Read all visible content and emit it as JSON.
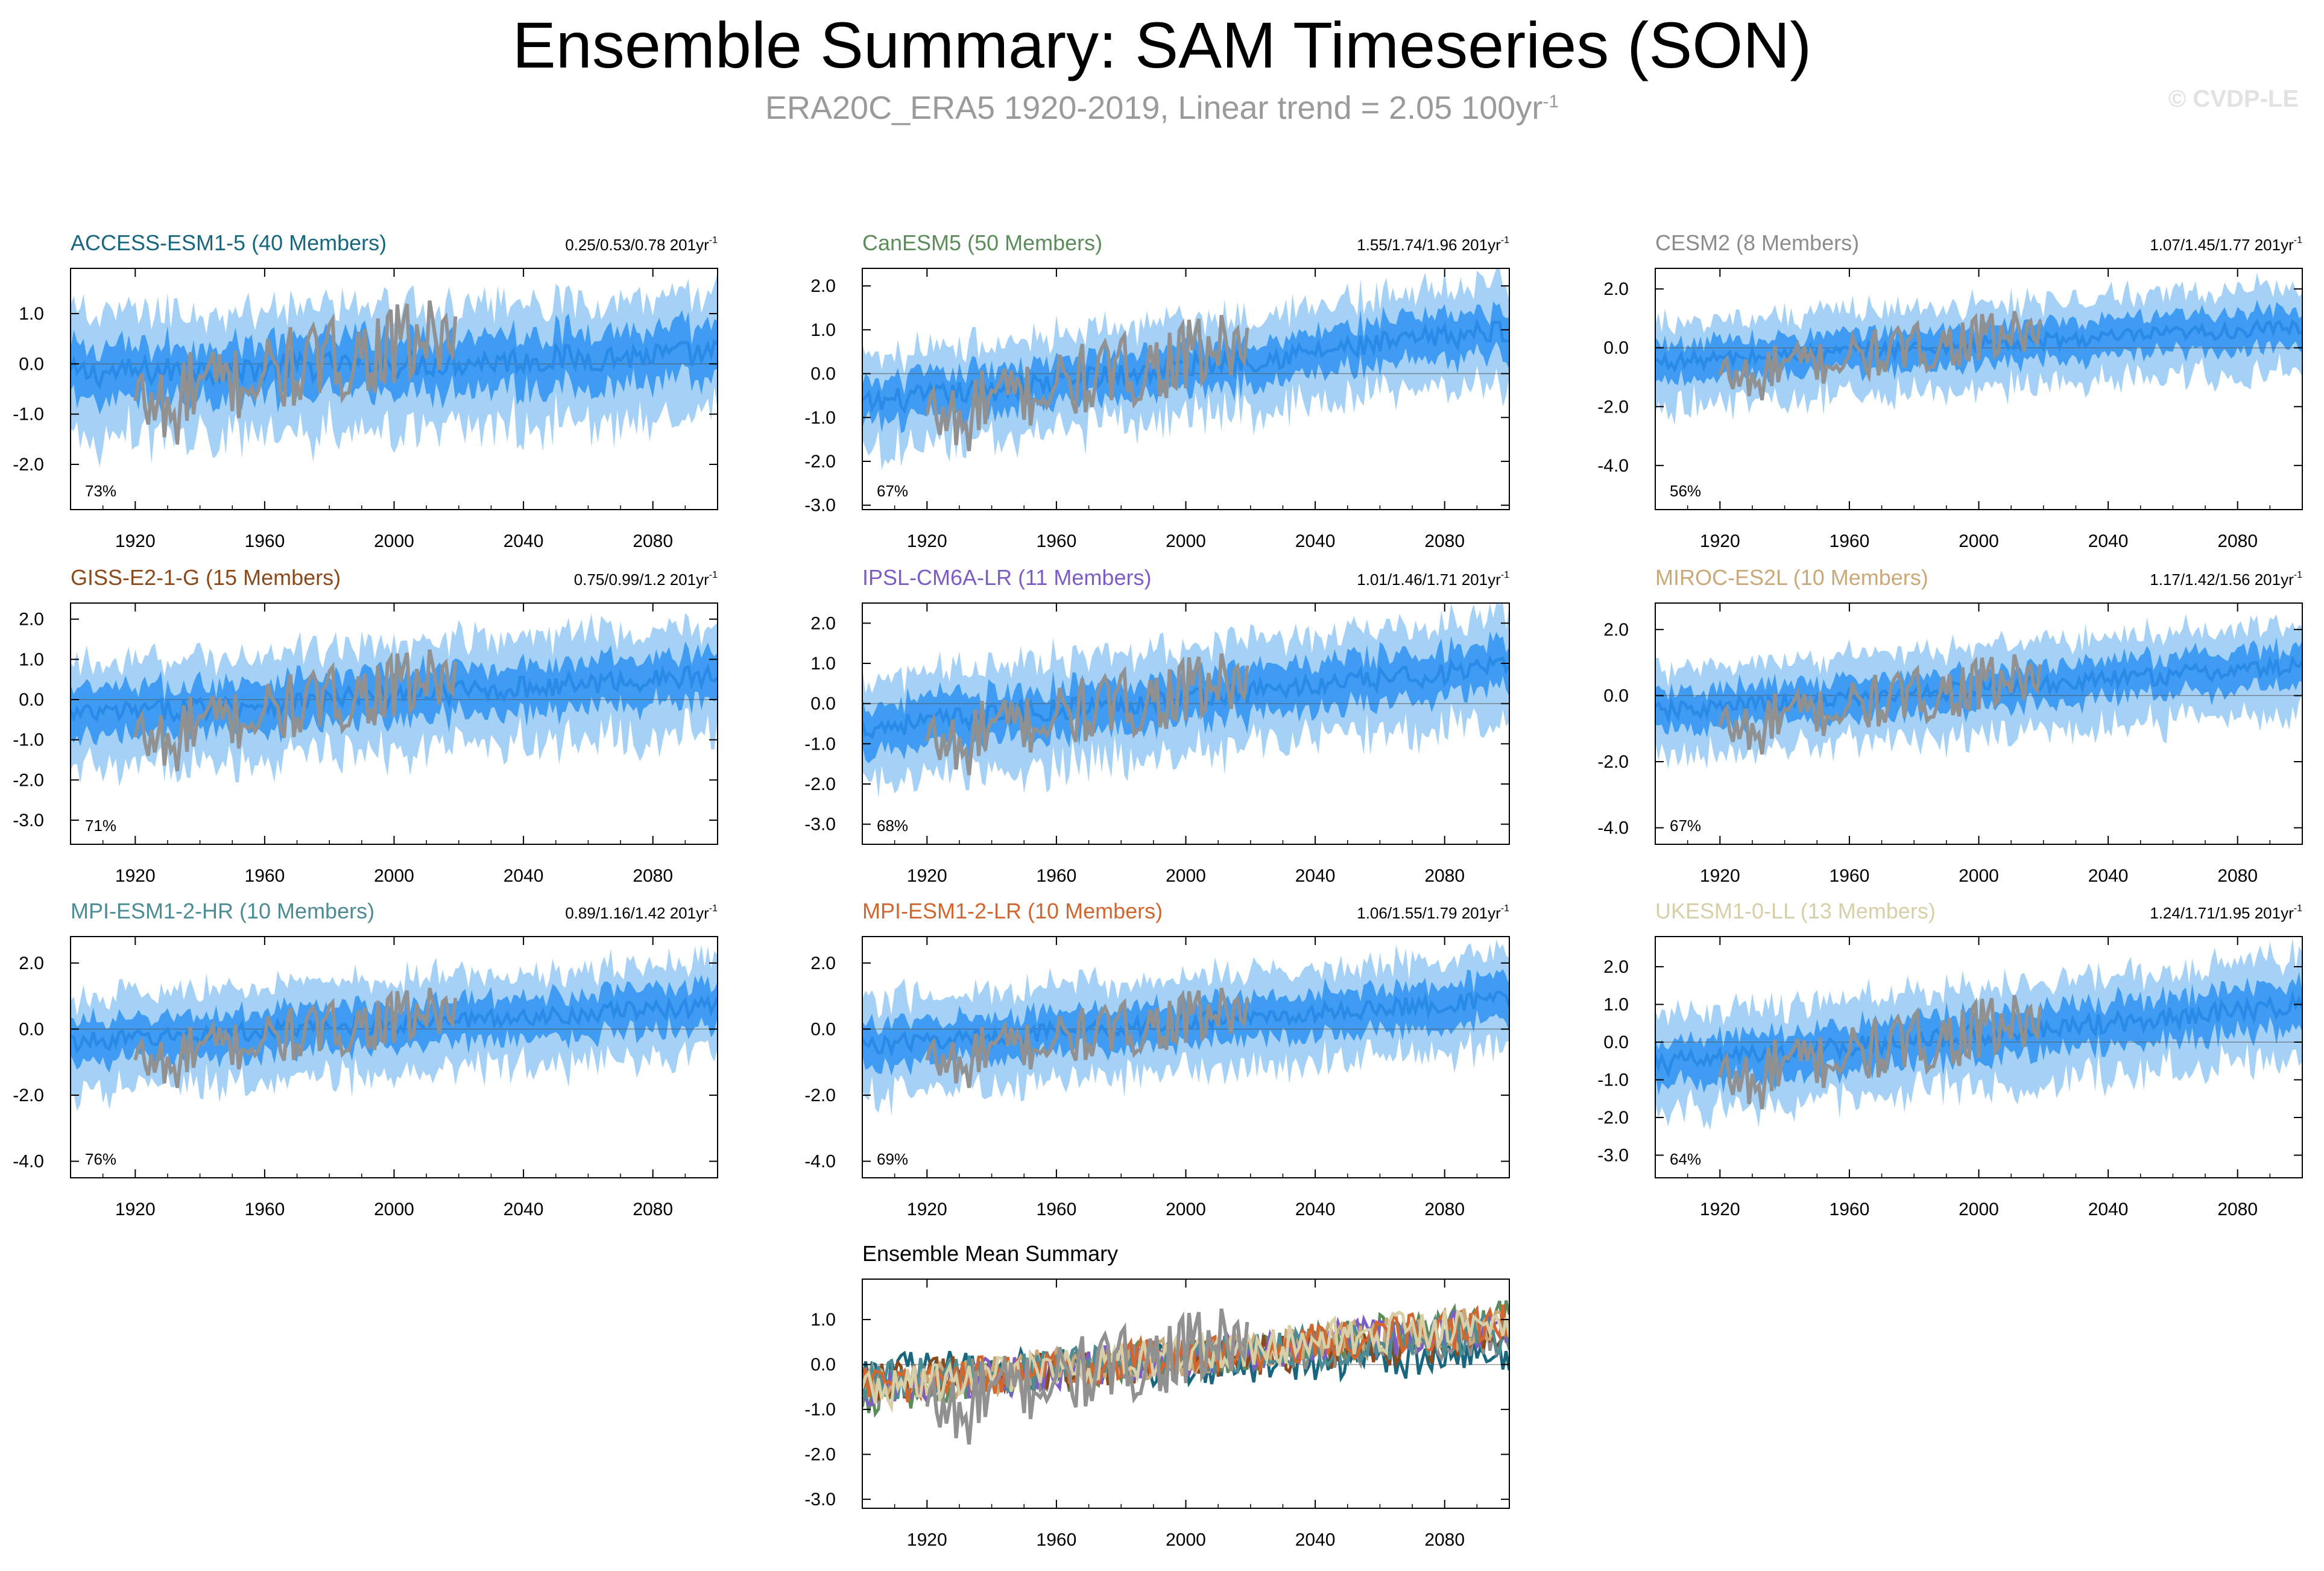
{
  "header": {
    "title": "Ensemble Summary: SAM Timeseries (SON)",
    "subtitle_main": "ERA20C_ERA5 1920-2019, Linear trend = 2.05 100yr",
    "subtitle_sup": "-1",
    "credit": "© CVDP-LE"
  },
  "colors": {
    "spread_outer": "#a6d1f7",
    "spread_inner": "#3f9cf2",
    "ens_mean": "#2a8ae8",
    "obs": "#919191"
  },
  "chart_data": [
    {
      "type": "area",
      "panel": "ACCESS-ESM1-5",
      "title": "ACCESS-ESM1-5 (40 Members)",
      "title_color": "#19677f",
      "trend": "0.25/0.53/0.78 201yr",
      "trend_sup": "-1",
      "pct": "73%",
      "yrange": [
        -2.9,
        1.9
      ],
      "yticks": [
        -2,
        -1,
        0,
        1
      ],
      "ytick_labels": [
        "-2.0",
        "-1.0",
        "0.0",
        "1.0"
      ],
      "xrange": [
        1900,
        2100
      ],
      "xticks": [
        1920,
        1960,
        2000,
        2040,
        2080
      ],
      "xtick_labels": [
        "1920",
        "1960",
        "2000",
        "2040",
        "2080"
      ],
      "trend_start": -0.2,
      "trend_end": 0.2,
      "spread_half": 1.1,
      "obs_start": -0.8,
      "obs_end": 0.6
    },
    {
      "type": "area",
      "panel": "CanESM5",
      "title": "CanESM5 (50 Members)",
      "title_color": "#5b8c5a",
      "trend": "1.55/1.74/1.96 201yr",
      "trend_sup": "-1",
      "pct": "67%",
      "yrange": [
        -3.1,
        2.4
      ],
      "yticks": [
        -3,
        -2,
        -1,
        0,
        1,
        2
      ],
      "ytick_labels": [
        "-3.0",
        "-2.0",
        "-1.0",
        "0.0",
        "1.0",
        "2.0"
      ],
      "xrange": [
        1900,
        2100
      ],
      "xticks": [
        1920,
        1960,
        2000,
        2040,
        2080
      ],
      "xtick_labels": [
        "1920",
        "1960",
        "2000",
        "2040",
        "2080"
      ],
      "trend_start": -0.7,
      "trend_end": 1.0,
      "spread_half": 1.0,
      "obs_start": -1.0,
      "obs_end": 0.7
    },
    {
      "type": "area",
      "panel": "CESM2",
      "title": "CESM2 (8 Members)",
      "title_color": "#8c8c8c",
      "trend": "1.07/1.45/1.77 201yr",
      "trend_sup": "-1",
      "pct": "56%",
      "yrange": [
        -5.5,
        2.7
      ],
      "yticks": [
        -4,
        -2,
        0,
        2
      ],
      "ytick_labels": [
        "-4.0",
        "-2.0",
        "0.0",
        "2.0"
      ],
      "xrange": [
        1900,
        2100
      ],
      "xticks": [
        1920,
        1960,
        2000,
        2040,
        2080
      ],
      "xtick_labels": [
        "1920",
        "1960",
        "2000",
        "2040",
        "2080"
      ],
      "trend_start": -0.5,
      "trend_end": 0.7,
      "spread_half": 1.3,
      "obs_start": -1.0,
      "obs_end": 0.6
    },
    {
      "type": "area",
      "panel": "GISS-E2-1-G",
      "title": "GISS-E2-1-G (15 Members)",
      "title_color": "#8b4a1c",
      "trend": "0.75/0.99/1.2 201yr",
      "trend_sup": "-1",
      "pct": "71%",
      "yrange": [
        -3.6,
        2.4
      ],
      "yticks": [
        -3,
        -2,
        -1,
        0,
        1,
        2
      ],
      "ytick_labels": [
        "-3.0",
        "-2.0",
        "-1.0",
        "0.0",
        "1.0",
        "2.0"
      ],
      "xrange": [
        1900,
        2100
      ],
      "xticks": [
        1920,
        1960,
        2000,
        2040,
        2080
      ],
      "xtick_labels": [
        "1920",
        "1960",
        "2000",
        "2040",
        "2080"
      ],
      "trend_start": -0.4,
      "trend_end": 0.6,
      "spread_half": 1.2,
      "obs_start": -1.0,
      "obs_end": 0.6
    },
    {
      "type": "area",
      "panel": "IPSL-CM6A-LR",
      "title": "IPSL-CM6A-LR (11 Members)",
      "title_color": "#7d5cc6",
      "trend": "1.01/1.46/1.71 201yr",
      "trend_sup": "-1",
      "pct": "68%",
      "yrange": [
        -3.5,
        2.5
      ],
      "yticks": [
        -3,
        -2,
        -1,
        0,
        1,
        2
      ],
      "ytick_labels": [
        "-3.0",
        "-2.0",
        "-1.0",
        "0.0",
        "1.0",
        "2.0"
      ],
      "xrange": [
        1900,
        2100
      ],
      "xticks": [
        1920,
        1960,
        2000,
        2040,
        2080
      ],
      "xtick_labels": [
        "1920",
        "1960",
        "2000",
        "2040",
        "2080"
      ],
      "trend_start": -0.6,
      "trend_end": 0.9,
      "spread_half": 1.2,
      "obs_start": -1.0,
      "obs_end": 0.6
    },
    {
      "type": "area",
      "panel": "MIROC-ES2L",
      "title": "MIROC-ES2L (10 Members)",
      "title_color": "#c9a97a",
      "trend": "1.17/1.42/1.56 201yr",
      "trend_sup": "-1",
      "pct": "67%",
      "yrange": [
        -4.5,
        2.8
      ],
      "yticks": [
        -4,
        -2,
        0,
        2
      ],
      "ytick_labels": [
        "-4.0",
        "-2.0",
        "0.0",
        "2.0"
      ],
      "xrange": [
        1900,
        2100
      ],
      "xticks": [
        1920,
        1960,
        2000,
        2040,
        2080
      ],
      "xtick_labels": [
        "1920",
        "1960",
        "2000",
        "2040",
        "2080"
      ],
      "trend_start": -0.5,
      "trend_end": 0.9,
      "spread_half": 1.2,
      "obs_start": -1.0,
      "obs_end": 0.6
    },
    {
      "type": "area",
      "panel": "MPI-ESM1-2-HR",
      "title": "MPI-ESM1-2-HR (10 Members)",
      "title_color": "#4d8c94",
      "trend": "0.89/1.16/1.42 201yr",
      "trend_sup": "-1",
      "pct": "76%",
      "yrange": [
        -4.5,
        2.8
      ],
      "yticks": [
        -4,
        -2,
        0,
        2
      ],
      "ytick_labels": [
        "-4.0",
        "-2.0",
        "0.0",
        "2.0"
      ],
      "xrange": [
        1900,
        2100
      ],
      "xticks": [
        1920,
        1960,
        2000,
        2040,
        2080
      ],
      "xtick_labels": [
        "1920",
        "1960",
        "2000",
        "2040",
        "2080"
      ],
      "trend_start": -0.4,
      "trend_end": 0.7,
      "spread_half": 1.3,
      "obs_start": -1.0,
      "obs_end": 0.6
    },
    {
      "type": "area",
      "panel": "MPI-ESM1-2-LR",
      "title": "MPI-ESM1-2-LR (10 Members)",
      "title_color": "#d1672f",
      "trend": "1.06/1.55/1.79 201yr",
      "trend_sup": "-1",
      "pct": "69%",
      "yrange": [
        -4.5,
        2.8
      ],
      "yticks": [
        -4,
        -2,
        0,
        2
      ],
      "ytick_labels": [
        "-4.0",
        "-2.0",
        "0.0",
        "2.0"
      ],
      "xrange": [
        1900,
        2100
      ],
      "xticks": [
        1920,
        1960,
        2000,
        2040,
        2080
      ],
      "xtick_labels": [
        "1920",
        "1960",
        "2000",
        "2040",
        "2080"
      ],
      "trend_start": -0.5,
      "trend_end": 0.9,
      "spread_half": 1.3,
      "obs_start": -1.0,
      "obs_end": 0.6
    },
    {
      "type": "area",
      "panel": "UKESM1-0-LL",
      "title": "UKESM1-0-LL (13 Members)",
      "title_color": "#d6cfa7",
      "trend": "1.24/1.71/1.95 201yr",
      "trend_sup": "-1",
      "pct": "64%",
      "yrange": [
        -3.6,
        2.8
      ],
      "yticks": [
        -3,
        -2,
        -1,
        0,
        1,
        2
      ],
      "ytick_labels": [
        "-3.0",
        "-2.0",
        "-1.0",
        "0.0",
        "1.0",
        "2.0"
      ],
      "xrange": [
        1900,
        2100
      ],
      "xticks": [
        1920,
        1960,
        2000,
        2040,
        2080
      ],
      "xtick_labels": [
        "1920",
        "1960",
        "2000",
        "2040",
        "2080"
      ],
      "trend_start": -0.6,
      "trend_end": 1.0,
      "spread_half": 1.2,
      "obs_start": -1.0,
      "obs_end": 0.6
    },
    {
      "type": "line",
      "panel": "Ensemble Mean Summary",
      "title": "Ensemble Mean Summary",
      "title_color": "#000000",
      "trend": "",
      "trend_sup": "",
      "pct": "",
      "yrange": [
        -3.2,
        1.9
      ],
      "yticks": [
        -3,
        -2,
        -1,
        0,
        1
      ],
      "ytick_labels": [
        "-3.0",
        "-2.0",
        "-1.0",
        "0.0",
        "1.0"
      ],
      "xrange": [
        1900,
        2100
      ],
      "xticks": [
        1920,
        1960,
        2000,
        2040,
        2080
      ],
      "xtick_labels": [
        "1920",
        "1960",
        "2000",
        "2040",
        "2080"
      ],
      "series": [
        {
          "name": "ACCESS-ESM1-5",
          "color": "#19677f",
          "start": -0.2,
          "end": 0.2
        },
        {
          "name": "CanESM5",
          "color": "#5b8c5a",
          "start": -0.7,
          "end": 1.0
        },
        {
          "name": "CESM2",
          "color": "#8c8c8c",
          "start": -0.5,
          "end": 0.7
        },
        {
          "name": "GISS-E2-1-G",
          "color": "#8b4a1c",
          "start": -0.4,
          "end": 0.6
        },
        {
          "name": "IPSL-CM6A-LR",
          "color": "#7d5cc6",
          "start": -0.6,
          "end": 0.9
        },
        {
          "name": "MIROC-ES2L",
          "color": "#c9a97a",
          "start": -0.5,
          "end": 0.9
        },
        {
          "name": "MPI-ESM1-2-HR",
          "color": "#4d8c94",
          "start": -0.4,
          "end": 0.7
        },
        {
          "name": "MPI-ESM1-2-LR",
          "color": "#d1672f",
          "start": -0.5,
          "end": 0.9
        },
        {
          "name": "UKESM1-0-LL",
          "color": "#d6cfa7",
          "start": -0.6,
          "end": 1.0
        }
      ],
      "obs_start": -1.0,
      "obs_end": 0.6
    }
  ]
}
